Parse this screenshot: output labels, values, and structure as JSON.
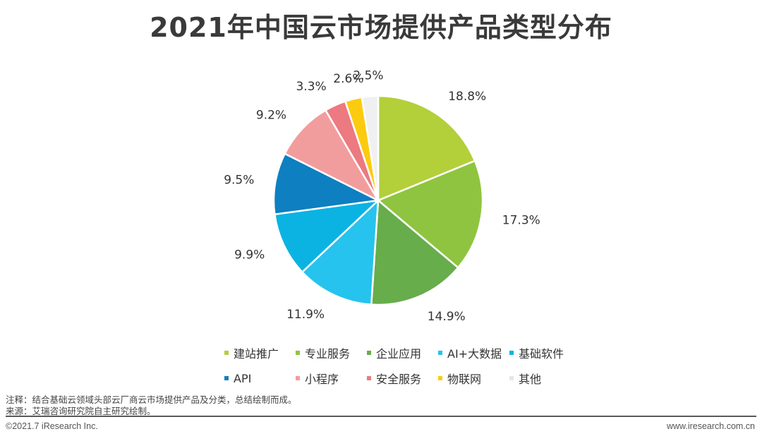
{
  "title": "2021年中国云市场提供产品类型分布",
  "chart_data": {
    "type": "pie",
    "title": "2021年中国云市场提供产品类型分布",
    "unit": "%",
    "start_angle": "12 o'clock",
    "direction": "clockwise",
    "legend_position": "bottom",
    "slices": [
      {
        "name": "建站推广",
        "value": 18.8,
        "label": "18.8%",
        "color": "#b3cf3a"
      },
      {
        "name": "专业服务",
        "value": 17.3,
        "label": "17.3%",
        "color": "#8fc440"
      },
      {
        "name": "企业应用",
        "value": 14.9,
        "label": "14.9%",
        "color": "#67ad4b"
      },
      {
        "name": "AI+大数据",
        "value": 11.9,
        "label": "11.9%",
        "color": "#26c3ee"
      },
      {
        "name": "基础软件",
        "value": 9.9,
        "label": "9.9%",
        "color": "#0bb3e3"
      },
      {
        "name": "API",
        "value": 9.5,
        "label": "9.5%",
        "color": "#0e7fc0"
      },
      {
        "name": "小程序",
        "value": 9.2,
        "label": "9.2%",
        "color": "#f29d9d"
      },
      {
        "name": "安全服务",
        "value": 3.3,
        "label": "3.3%",
        "color": "#ec7a80"
      },
      {
        "name": "物联网",
        "value": 2.6,
        "label": "2.6%",
        "color": "#fccb0f"
      },
      {
        "name": "其他",
        "value": 2.5,
        "label": "2.5%",
        "color": "#f0f0f0"
      }
    ]
  },
  "notes": {
    "note": "注释：结合基础云领域头部云厂商云市场提供产品及分类，总结绘制而成。",
    "source": "来源：艾瑞咨询研究院自主研究绘制。"
  },
  "footer": {
    "copyright": "©2021.7 iResearch Inc.",
    "website": "www.iresearch.com.cn"
  }
}
